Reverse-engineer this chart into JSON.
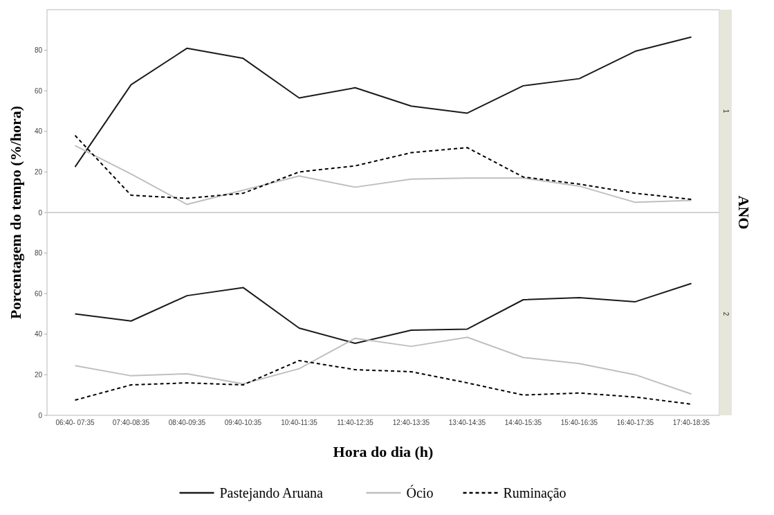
{
  "chart_data": [
    {
      "type": "line",
      "title": "1",
      "ylabel": "Porcentagem do tempo (%/hora)",
      "annotations": [
        "ANO"
      ],
      "categories": [
        null,
        null,
        null,
        null,
        null,
        null,
        null,
        null,
        null,
        null,
        null,
        null
      ],
      "series": [
        {
          "color": "#1a1a1a",
          "line_style": "solid",
          "values": [
            22.5,
            63,
            81,
            76,
            56.5,
            61.5,
            52.5,
            49,
            62.5,
            66,
            79.5,
            86.5
          ]
        },
        {
          "color": "#bfbfbf",
          "line_style": "solid",
          "values": [
            33,
            19,
            4,
            11,
            18,
            12.5,
            16.5,
            17,
            17,
            13,
            5,
            6
          ]
        },
        {
          "color": "#000000",
          "line_style": "dashed",
          "values": [
            38,
            8.5,
            7,
            9.5,
            20,
            23,
            29.5,
            32,
            17.5,
            14,
            9.5,
            6.5
          ]
        }
      ],
      "ylim": [
        0,
        100
      ],
      "yticks": [
        0,
        20,
        40,
        60,
        80
      ],
      "tick_labels": "y",
      "legend": false,
      "grid": false
    },
    {
      "type": "line",
      "title": "2",
      "xlabel": "Hora do dia (h)",
      "categories": [
        "06:40- 07:35",
        "07:40-08:35",
        "08:40-09:35",
        "09:40-10:35",
        "10:40-11:35",
        "11:40-12:35",
        "12:40-13:35",
        "13:40-14:35",
        "14:40-15:35",
        "15:40-16:35",
        "16:40-17:35",
        "17:40-18:35"
      ],
      "series": [
        {
          "name": "Pastejando Aruana",
          "color": "#1a1a1a",
          "line_style": "solid",
          "values": [
            50,
            46.5,
            59,
            63,
            43,
            35.5,
            42,
            42.5,
            57,
            58,
            56,
            65
          ]
        },
        {
          "name": "Ócio",
          "color": "#bfbfbf",
          "line_style": "solid",
          "values": [
            24.5,
            19.5,
            20.5,
            15.5,
            23,
            38,
            34,
            38.5,
            28.5,
            25.5,
            20,
            10.5
          ]
        },
        {
          "name": "Ruminação",
          "color": "#000000",
          "line_style": "dashed",
          "values": [
            7.5,
            15,
            16,
            15,
            27,
            22.5,
            21.5,
            16,
            10,
            11,
            9,
            5.5
          ]
        }
      ],
      "ylim": [
        0,
        100
      ],
      "yticks": [
        0,
        20,
        40,
        60,
        80
      ],
      "legend": "bottom",
      "grid": false
    }
  ]
}
